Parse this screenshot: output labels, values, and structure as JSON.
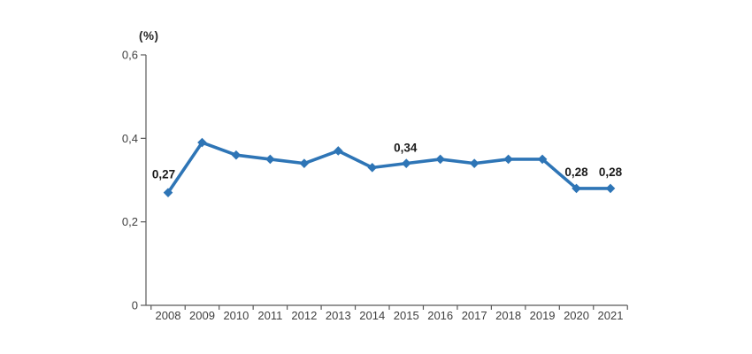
{
  "page": {
    "background": "#ffffff"
  },
  "chart_data": {
    "type": "line",
    "title": "",
    "unit_label": "(%)",
    "xlabel": "",
    "ylabel": "(%)",
    "categories": [
      "2008",
      "2009",
      "2010",
      "2011",
      "2012",
      "2013",
      "2014",
      "2015",
      "2016",
      "2017",
      "2018",
      "2019",
      "2020",
      "2021"
    ],
    "series": [
      {
        "name": "percentage",
        "values": [
          0.27,
          0.39,
          0.36,
          0.35,
          0.34,
          0.37,
          0.33,
          0.34,
          0.35,
          0.34,
          0.35,
          0.35,
          0.28,
          0.28
        ]
      }
    ],
    "point_labels": [
      "0,27",
      "",
      "",
      "",
      "",
      "",
      "",
      "0,34",
      "",
      "",
      "",
      "",
      "0,28",
      "0,28"
    ],
    "y_ticks": [
      {
        "label": "0",
        "value": 0
      },
      {
        "label": "0,2",
        "value": 0.2
      },
      {
        "label": "0,4",
        "value": 0.4
      },
      {
        "label": "0,6",
        "value": 0.6
      }
    ],
    "ylim": [
      0,
      0.6
    ],
    "grid": false,
    "legend": "none",
    "marker": "diamond",
    "decimal_separator": ",",
    "colors": {
      "line": "#2E75B6",
      "data_label": "#1a1a1a",
      "axis": "#595959",
      "tick_text": "#404040"
    }
  }
}
